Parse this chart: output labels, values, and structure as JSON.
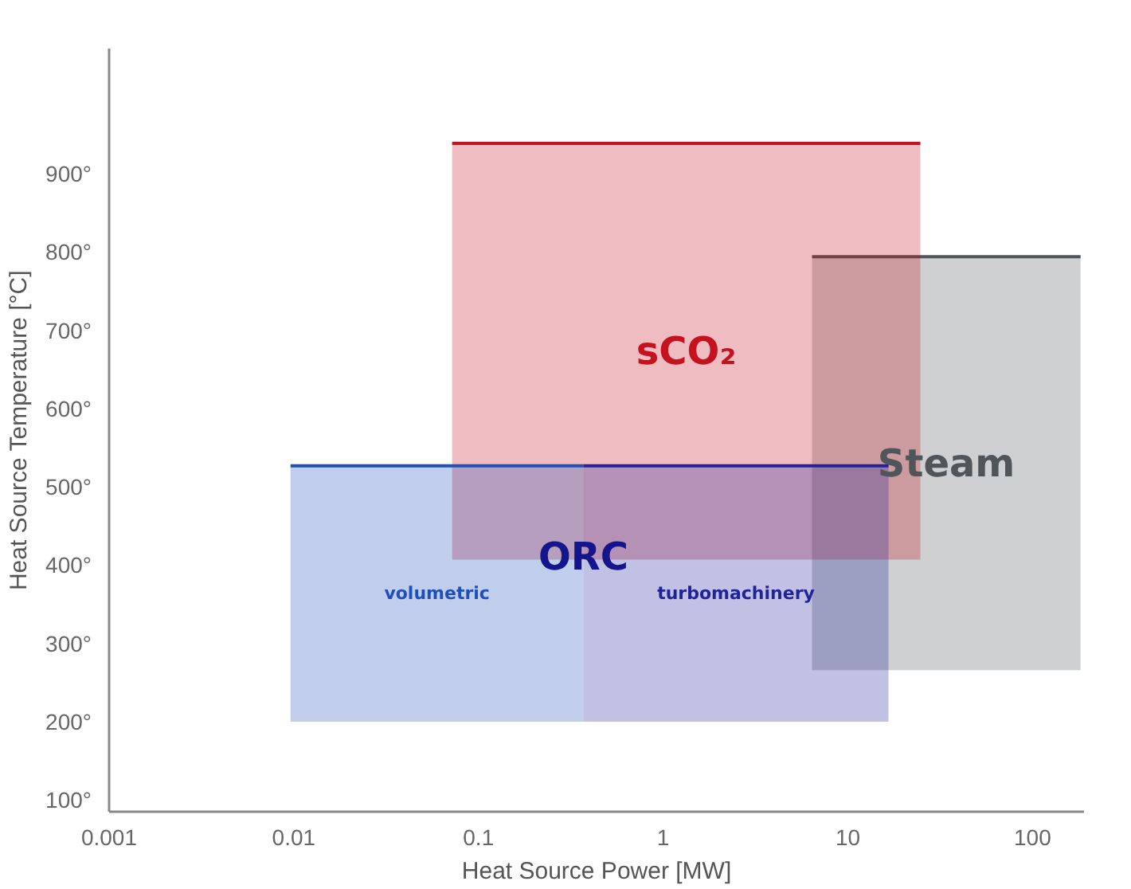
{
  "chart_data": {
    "type": "line",
    "xlabel": "Heat Source Power [MW]",
    "ylabel": "Heat Source Temperature [°C]",
    "log": "x",
    "grid": false,
    "xlim": [
      0.001,
      190
    ],
    "ylim": [
      85,
      1060
    ],
    "xticks": [
      0.001,
      0.01,
      0.1,
      1,
      10,
      100
    ],
    "yticks": [
      {
        "value": 100,
        "label": "100°"
      },
      {
        "value": 200,
        "label": "200°"
      },
      {
        "value": 300,
        "label": "300°"
      },
      {
        "value": 400,
        "label": "400°"
      },
      {
        "value": 500,
        "label": "500°"
      },
      {
        "value": 600,
        "label": "600°"
      },
      {
        "value": 700,
        "label": "700°"
      },
      {
        "value": 800,
        "label": "800°"
      },
      {
        "value": 900,
        "label": "900°"
      }
    ],
    "series": [
      {
        "name": "Steam",
        "color": "#4f5558",
        "x": [
          6.4,
          182
        ],
        "values": [
          794,
          794
        ],
        "upper": [
          794,
          794
        ],
        "lower": [
          266,
          266
        ]
      },
      {
        "name": "sCO₂",
        "color": "#c4121f",
        "x": [
          0.072,
          24.7
        ],
        "values": [
          939,
          939
        ],
        "upper": [
          939,
          939
        ],
        "lower": [
          407,
          407
        ]
      },
      {
        "name": "volumetric",
        "color": "#1f50b8",
        "x": [
          0.0096,
          0.37
        ],
        "values": [
          527,
          527
        ],
        "upper": [
          527,
          527
        ],
        "lower": [
          200,
          200
        ]
      },
      {
        "name": "turbomachinery",
        "color": "#22229a",
        "x": [
          0.37,
          16.6
        ],
        "values": [
          527,
          527
        ],
        "upper": [
          527,
          527
        ],
        "lower": [
          200,
          200
        ]
      }
    ],
    "annotations": [
      {
        "text": "ORC",
        "x": 0.37,
        "y": 411
      }
    ]
  }
}
